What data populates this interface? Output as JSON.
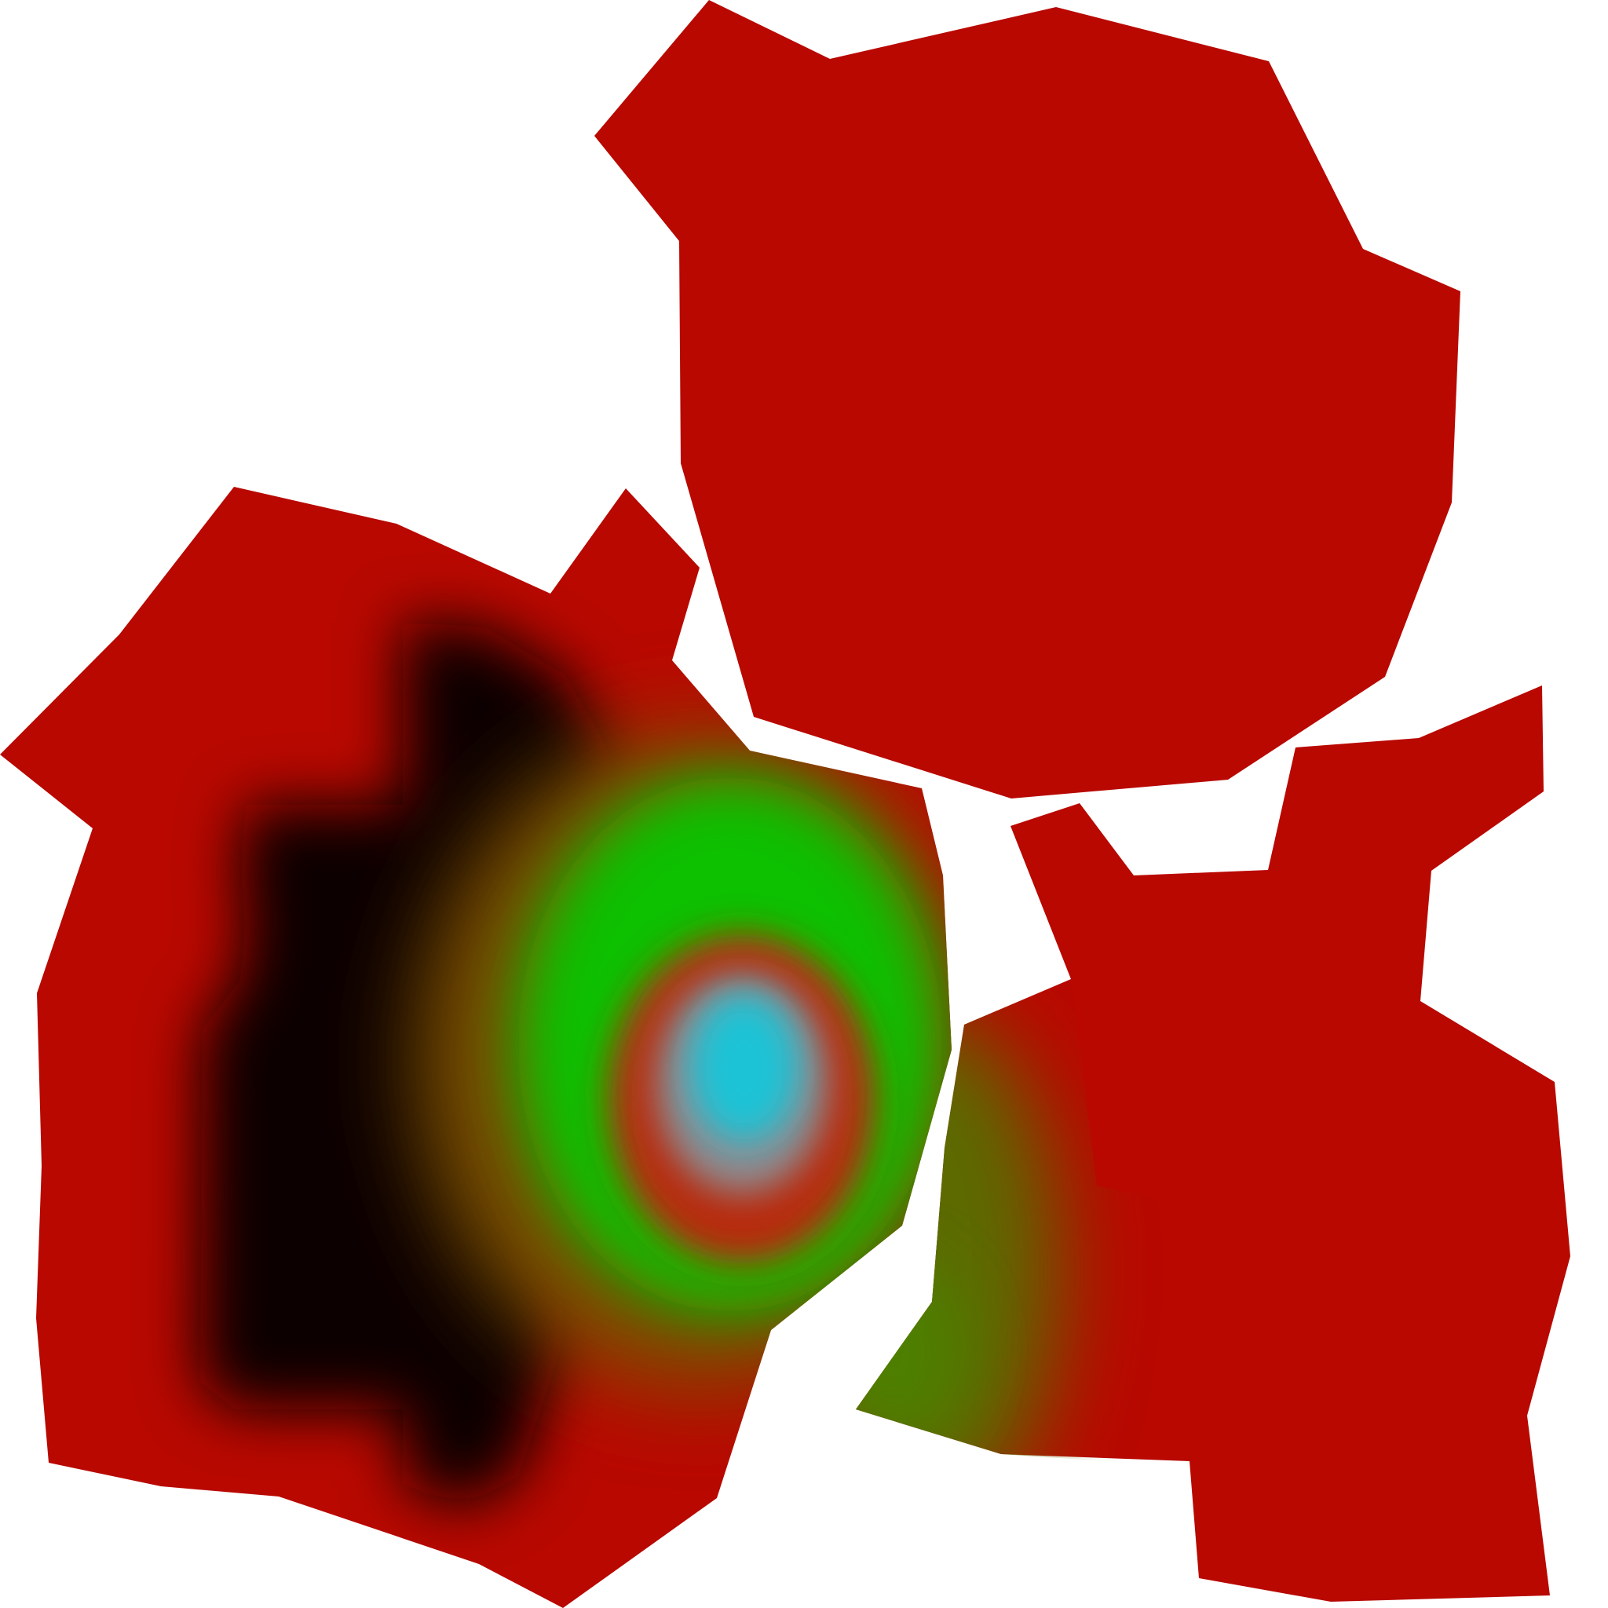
{
  "palette": {
    "background": "#ffffff",
    "region_red": "#b80800",
    "shadow_black": "#0b0000",
    "glow_green": "#10c000",
    "glow_olive": "#7a4f00",
    "core_cyan": "#1ec3d6",
    "core_grey": "#8c8c92"
  },
  "regions": [
    {
      "id": "top-region"
    },
    {
      "id": "left-region"
    },
    {
      "id": "right-region"
    }
  ]
}
